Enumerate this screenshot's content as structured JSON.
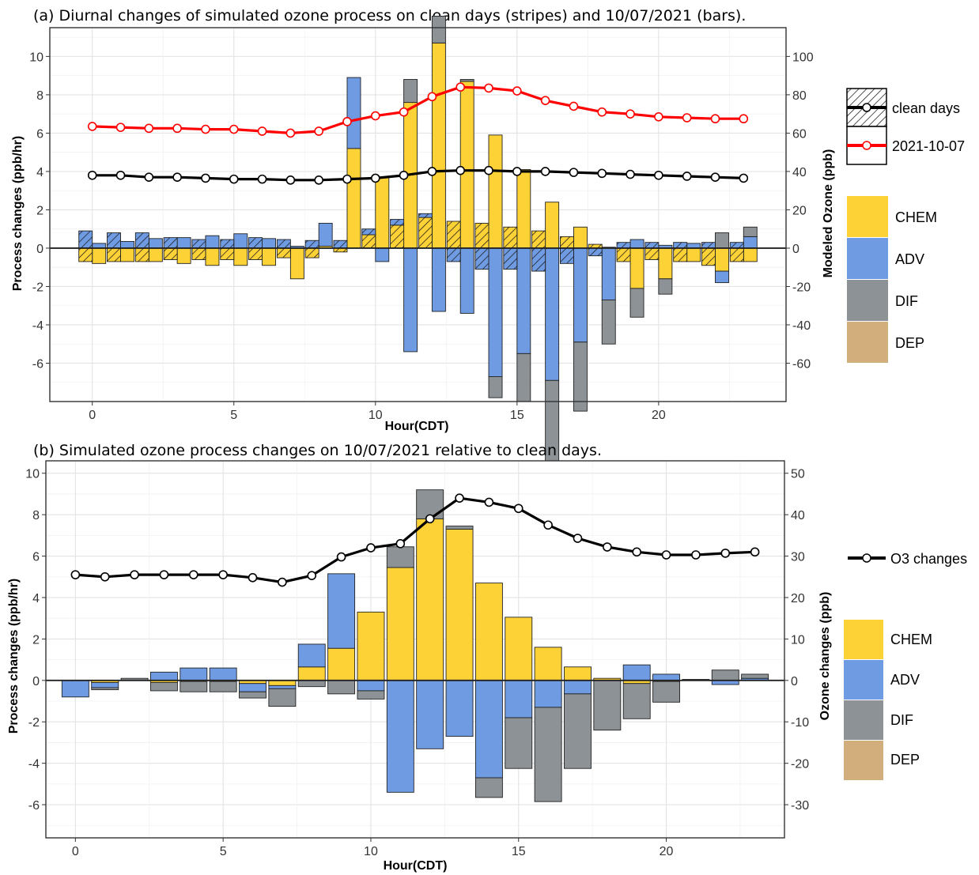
{
  "colors": {
    "chem": "#fdd236",
    "adv": "#6f9be3",
    "dif": "#8c9296",
    "dep": "#d2ae7c",
    "oct_line": "#ff0000",
    "clean_line": "#000000"
  },
  "chart_data": [
    {
      "type": "bar",
      "title": "(a) Diurnal changes of simulated ozone process on clean days (stripes) and 10/07/2021 (bars).",
      "xlabel": "Hour(CDT)",
      "ylabel": "Process changes (ppb/hr)",
      "y2label": "Modeled Ozone (ppb)",
      "xlim": [
        -1.5,
        24.5
      ],
      "ylim": [
        -8,
        11.5
      ],
      "y2lim": [
        -80,
        115
      ],
      "xticks": [
        0,
        5,
        10,
        15,
        20
      ],
      "yticks": [
        -6,
        -4,
        -2,
        0,
        2,
        4,
        6,
        8,
        10
      ],
      "y2ticks": [
        -60,
        -40,
        -20,
        0,
        20,
        40,
        60,
        80,
        100
      ],
      "grid": true,
      "hours": [
        0,
        1,
        2,
        3,
        4,
        5,
        6,
        7,
        8,
        9,
        10,
        11,
        12,
        13,
        14,
        15,
        16,
        17,
        18,
        19,
        20,
        21,
        22,
        23
      ],
      "series": [
        {
          "name": "CHEM",
          "group": "2021-10-07",
          "values": [
            -0.8,
            -0.7,
            -0.7,
            -0.8,
            -0.9,
            -0.9,
            -0.9,
            -1.6,
            0.1,
            5.2,
            3.7,
            7.6,
            10.7,
            8.7,
            5.9,
            4.1,
            2.4,
            1.1,
            0.05,
            -2.1,
            -1.6,
            -0.7,
            -1.2,
            -0.7
          ]
        },
        {
          "name": "ADV",
          "group": "2021-10-07",
          "values": [
            0.25,
            0.35,
            0.5,
            0.55,
            0.65,
            0.75,
            0.5,
            0.1,
            1.2,
            3.7,
            -0.7,
            -5.4,
            -3.3,
            -3.4,
            -6.7,
            -5.5,
            -6.9,
            -4.9,
            -2.7,
            0.45,
            0.15,
            0.25,
            -0.6,
            0.6
          ]
        },
        {
          "name": "DIF",
          "group": "2021-10-07",
          "values": [
            0,
            0,
            0,
            0,
            0,
            0,
            0,
            0,
            0,
            0,
            0,
            1.2,
            1.4,
            0.1,
            -1.1,
            -2.5,
            -4.6,
            -3.6,
            -2.3,
            -1.5,
            -0.8,
            0,
            0.8,
            0.5
          ]
        },
        {
          "name": "DEP",
          "group": "2021-10-07",
          "values": [
            0,
            0,
            0,
            0,
            0,
            0,
            0,
            0,
            0,
            0,
            0,
            0,
            0,
            0,
            0,
            0,
            0,
            0,
            0,
            0,
            0,
            0,
            0,
            0
          ]
        },
        {
          "name": "CHEM",
          "group": "clean days",
          "values": [
            -0.7,
            -0.7,
            -0.7,
            -0.6,
            -0.6,
            -0.6,
            -0.6,
            -0.5,
            -0.5,
            -0.2,
            0.7,
            1.2,
            1.6,
            1.4,
            1.3,
            1.1,
            0.9,
            0.6,
            0.2,
            -0.7,
            -0.6,
            -0.7,
            -0.9,
            -0.7
          ]
        },
        {
          "name": "ADV",
          "group": "clean days",
          "values": [
            0.9,
            0.8,
            0.8,
            0.55,
            0.45,
            0.45,
            0.55,
            0.45,
            0.4,
            0.4,
            0.3,
            0.3,
            0.2,
            -0.7,
            -1.1,
            -1.1,
            -1.2,
            -0.8,
            -0.4,
            0.3,
            0.3,
            0.3,
            0.3,
            0.3
          ]
        },
        {
          "name": "DIF",
          "group": "clean days",
          "values": [
            0,
            0,
            0,
            0,
            0,
            0,
            0,
            0,
            0,
            0,
            0,
            0,
            0,
            0,
            0,
            0,
            0,
            0,
            0,
            0,
            0,
            0,
            0,
            0
          ]
        },
        {
          "name": "DEP",
          "group": "clean days",
          "values": [
            0,
            0,
            0,
            0,
            0,
            0,
            0,
            0,
            0,
            0,
            0,
            0,
            0,
            0,
            0,
            0,
            0,
            0,
            0,
            0,
            0,
            0,
            0,
            0
          ]
        }
      ],
      "lines": [
        {
          "name": "clean days",
          "axis": "right",
          "values": [
            38,
            38,
            37,
            37,
            36.5,
            36,
            36,
            35.5,
            35.5,
            36,
            36.5,
            38,
            40,
            40.5,
            40.5,
            40,
            40,
            39.5,
            39,
            38.5,
            38,
            37.5,
            37,
            36.5
          ]
        },
        {
          "name": "2021-10-07",
          "axis": "right",
          "values": [
            63.5,
            63,
            62.5,
            62.5,
            62,
            62,
            61,
            60,
            61,
            66,
            69,
            71,
            79,
            84,
            83.5,
            82,
            77,
            74,
            71,
            70,
            68.5,
            68,
            67.5,
            67.5
          ]
        }
      ],
      "legend": {
        "position": "right",
        "lines": [
          "clean days",
          "2021-10-07"
        ],
        "fills": [
          "CHEM",
          "ADV",
          "DIF",
          "DEP"
        ]
      }
    },
    {
      "type": "bar",
      "title": "(b) Simulated ozone process changes on 10/07/2021 relative to clean days.",
      "xlabel": "Hour(CDT)",
      "ylabel": "Process changes (ppb/hr)",
      "y2label": "Ozone changes (ppb)",
      "xlim": [
        -1,
        24
      ],
      "ylim": [
        -7.6,
        10.6
      ],
      "y2lim": [
        -38,
        53
      ],
      "xticks": [
        0,
        5,
        10,
        15,
        20
      ],
      "yticks": [
        -6,
        -4,
        -2,
        0,
        2,
        4,
        6,
        8,
        10
      ],
      "y2ticks": [
        -30,
        -20,
        -10,
        0,
        10,
        20,
        30,
        40,
        50
      ],
      "grid": true,
      "hours": [
        0,
        1,
        2,
        3,
        4,
        5,
        6,
        7,
        8,
        9,
        10,
        11,
        12,
        13,
        14,
        15,
        16,
        17,
        18,
        19,
        20,
        21,
        22,
        23
      ],
      "series": [
        {
          "name": "CHEM",
          "values": [
            0,
            -0.1,
            0,
            -0.1,
            -0.05,
            -0.05,
            -0.15,
            -0.25,
            0.65,
            1.55,
            3.3,
            5.45,
            7.8,
            7.3,
            4.7,
            3.05,
            1.6,
            0.65,
            0.1,
            -0.15,
            -0.05,
            0,
            0,
            0
          ]
        },
        {
          "name": "ADV",
          "values": [
            -0.8,
            -0.25,
            0,
            0.4,
            0.6,
            0.6,
            -0.4,
            -0.15,
            1.1,
            3.6,
            -0.5,
            -5.4,
            -3.3,
            -2.7,
            -4.7,
            -1.8,
            -1.3,
            -0.65,
            0,
            0.75,
            0.3,
            0.05,
            -0.2,
            0.1
          ]
        },
        {
          "name": "DIF",
          "values": [
            0,
            -0.1,
            0.1,
            -0.4,
            -0.5,
            -0.5,
            -0.3,
            -0.85,
            -0.3,
            -0.65,
            -0.4,
            1.0,
            1.4,
            0.15,
            -0.95,
            -2.45,
            -4.55,
            -3.6,
            -2.4,
            -1.7,
            -1.0,
            0,
            0.5,
            0.2
          ]
        },
        {
          "name": "DEP",
          "values": [
            0,
            0,
            0,
            0,
            0,
            0,
            0,
            0,
            0,
            0,
            0,
            0,
            0,
            0,
            0,
            0,
            0,
            0,
            0,
            0,
            0,
            0,
            0,
            0
          ]
        }
      ],
      "lines": [
        {
          "name": "O3 changes",
          "axis": "right",
          "values": [
            25.5,
            25,
            25.5,
            25.5,
            25.5,
            25.5,
            24.8,
            23.7,
            25.3,
            29.8,
            32,
            33,
            39,
            44,
            43,
            41.5,
            37.5,
            34.3,
            32.2,
            31,
            30.3,
            30.3,
            30.7,
            31
          ]
        }
      ],
      "legend": {
        "position": "right",
        "lines": [
          "O3 changes"
        ],
        "fills": [
          "CHEM",
          "ADV",
          "DIF",
          "DEP"
        ]
      }
    }
  ]
}
